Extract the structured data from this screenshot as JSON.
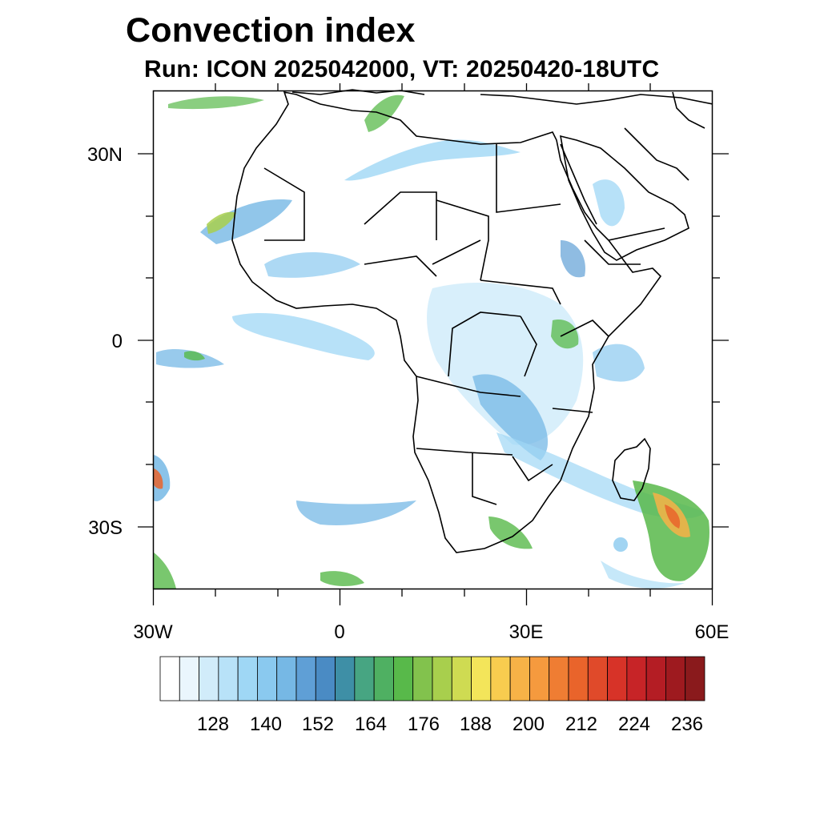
{
  "title": "Convection index",
  "subtitle": "Run: ICON 2025042000,  VT: 20250420-18UTC",
  "axes": {
    "lon_labels": [
      "30W",
      "0",
      "30E",
      "60E"
    ],
    "lat_labels": [
      "30N",
      "0",
      "30S"
    ]
  },
  "colorbar": {
    "labels": [
      "128",
      "140",
      "152",
      "164",
      "176",
      "188",
      "200",
      "212",
      "224",
      "236"
    ],
    "colors": [
      "#ffffff",
      "#eaf6fd",
      "#d1ecfa",
      "#b8e2f8",
      "#9fd7f5",
      "#8ac9ef",
      "#76b8e5",
      "#5f9fd6",
      "#4a8bc4",
      "#3e8fa6",
      "#47a582",
      "#4fb062",
      "#58b94a",
      "#82c24d",
      "#a8cf4d",
      "#cfdb52",
      "#f3e55a",
      "#f8cc4f",
      "#f7b247",
      "#f59a3e",
      "#ef7d33",
      "#e9642b",
      "#e04a2a",
      "#d73328",
      "#c72427",
      "#b41d24",
      "#9e1a1f",
      "#8a1a1c"
    ]
  }
}
